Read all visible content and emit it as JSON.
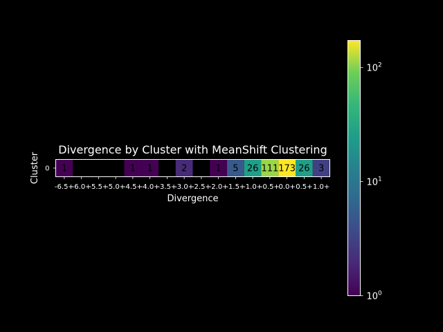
{
  "chart_data": {
    "type": "heatmap",
    "title": "Divergence by Cluster with MeanShift Clustering",
    "xlabel": "Divergence",
    "ylabel": "Cluster",
    "x_categories": [
      "-6.5+",
      "-6.0+",
      "-5.5+",
      "-5.0+",
      "-4.5+",
      "-4.0+",
      "-3.5+",
      "-3.0+",
      "-2.5+",
      "-2.0+",
      "-1.5+",
      "-1.0+",
      "-0.5+",
      "0.0+",
      "0.5+",
      "1.0+"
    ],
    "y_categories": [
      "0"
    ],
    "rows": [
      {
        "cluster": "0",
        "values": [
          1,
          null,
          null,
          null,
          1,
          1,
          null,
          2,
          null,
          1,
          5,
          26,
          111,
          173,
          26,
          3
        ]
      }
    ],
    "color_scale": "log",
    "colormap": "viridis",
    "colorbar": {
      "range": [
        1,
        173
      ],
      "ticks": [
        {
          "value": 1,
          "base": "10",
          "exp": "0"
        },
        {
          "value": 10,
          "base": "10",
          "exp": "1"
        },
        {
          "value": 100,
          "base": "10",
          "exp": "2"
        }
      ]
    },
    "background_color": "#000000",
    "text_color": "#ffffff",
    "cell_text_color": "#000000"
  }
}
